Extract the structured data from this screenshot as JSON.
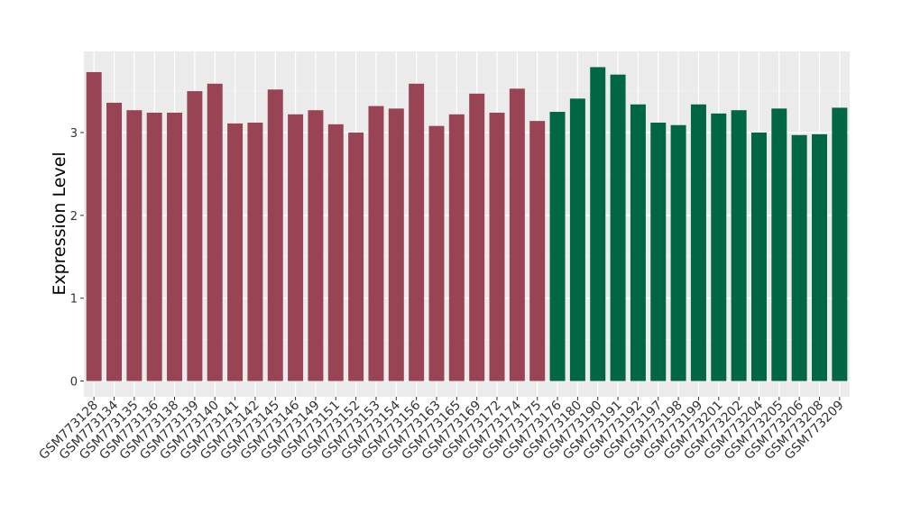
{
  "chart_data": {
    "type": "bar",
    "y_label": "Expression Level",
    "categories": [
      "GSM773128",
      "GSM773134",
      "GSM773135",
      "GSM773136",
      "GSM773138",
      "GSM773139",
      "GSM773140",
      "GSM773141",
      "GSM773142",
      "GSM773145",
      "GSM773146",
      "GSM773149",
      "GSM773151",
      "GSM773152",
      "GSM773153",
      "GSM773154",
      "GSM773156",
      "GSM773163",
      "GSM773165",
      "GSM773169",
      "GSM773172",
      "GSM773174",
      "GSM773175",
      "GSM773176",
      "GSM773180",
      "GSM773190",
      "GSM773191",
      "GSM773192",
      "GSM773197",
      "GSM773198",
      "GSM773199",
      "GSM773201",
      "GSM773202",
      "GSM773204",
      "GSM773205",
      "GSM773206",
      "GSM773208",
      "GSM773209"
    ],
    "values": [
      3.73,
      3.36,
      3.27,
      3.24,
      3.24,
      3.5,
      3.59,
      3.11,
      3.12,
      3.52,
      3.22,
      3.27,
      3.1,
      3.0,
      3.32,
      3.29,
      3.59,
      3.08,
      3.22,
      3.47,
      3.24,
      3.53,
      3.14,
      3.25,
      3.41,
      3.79,
      3.7,
      3.34,
      3.12,
      3.09,
      3.34,
      3.23,
      3.27,
      3.0,
      3.29,
      2.97,
      2.98,
      3.3
    ],
    "colors": [
      "#994455",
      "#994455",
      "#994455",
      "#994455",
      "#994455",
      "#994455",
      "#994455",
      "#994455",
      "#994455",
      "#994455",
      "#994455",
      "#994455",
      "#994455",
      "#994455",
      "#994455",
      "#994455",
      "#994455",
      "#994455",
      "#994455",
      "#994455",
      "#994455",
      "#994455",
      "#994455",
      "#006644",
      "#006644",
      "#006644",
      "#006644",
      "#006644",
      "#006644",
      "#006644",
      "#006644",
      "#006644",
      "#006644",
      "#006644",
      "#006644",
      "#006644",
      "#006644",
      "#006644"
    ],
    "ylim": [
      -0.19,
      3.98
    ],
    "yticks": [
      0,
      1,
      2,
      3
    ],
    "grid": true
  }
}
